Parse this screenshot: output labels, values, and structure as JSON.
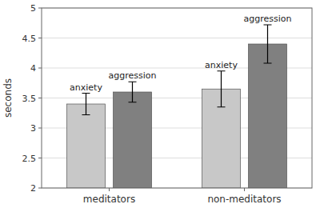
{
  "chart_data": {
    "type": "bar",
    "ylabel": "seconds",
    "categories": [
      "meditators",
      "non-meditators"
    ],
    "series": [
      {
        "name": "anxiety",
        "color": "#c8c8c8",
        "values": [
          3.4,
          3.65
        ],
        "errors": [
          0.18,
          0.3
        ]
      },
      {
        "name": "aggression",
        "color": "#808080",
        "values": [
          3.6,
          4.4
        ],
        "errors": [
          0.17,
          0.32
        ]
      }
    ],
    "ylim": [
      2,
      5
    ],
    "yticks": [
      2,
      2.5,
      3,
      3.5,
      4,
      4.5,
      5
    ],
    "grid": true
  }
}
